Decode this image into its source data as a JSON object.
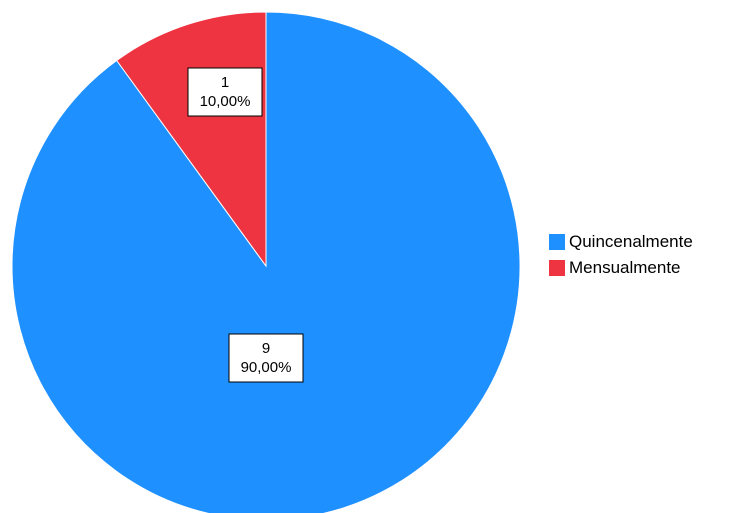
{
  "chart_data": {
    "type": "pie",
    "categories": [
      "Quincenalmente",
      "Mensualmente"
    ],
    "values": [
      9,
      1
    ],
    "percent_labels": [
      "90,00%",
      "10,00%"
    ],
    "count_labels": [
      "9",
      "1"
    ],
    "colors": [
      "#1E90FF",
      "#EE3440"
    ],
    "start": "12 o'clock",
    "direction": "clockwise",
    "legend_position": "right"
  }
}
